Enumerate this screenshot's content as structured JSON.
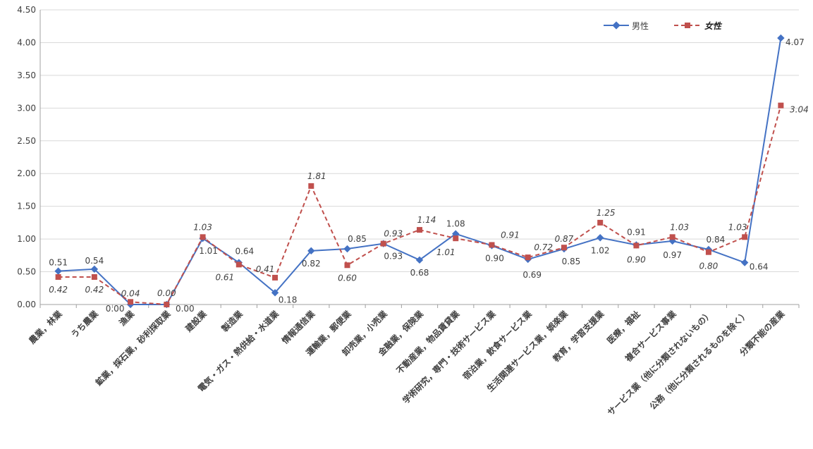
{
  "chart_data": {
    "type": "line",
    "title": "",
    "xlabel": "",
    "ylabel": "",
    "ylim": [
      0,
      4.5
    ],
    "yticks": [
      "0.00",
      "0.50",
      "1.00",
      "1.50",
      "2.00",
      "2.50",
      "3.00",
      "3.50",
      "4.00",
      "4.50"
    ],
    "grid": true,
    "legend_position": "top-right",
    "categories": [
      "農業，林業",
      "うち農業",
      "漁業",
      "鉱業，採石業，砂利採取業",
      "建設業",
      "製造業",
      "電気・ガス・熱供給・水道業",
      "情報通信業",
      "運輸業，郵便業",
      "卸売業，小売業",
      "金融業，保険業",
      "不動産業，物品賃貸業",
      "学術研究，専門・技術サービス業",
      "宿泊業，飲食サービス業",
      "生活関連サービス業，娯楽業",
      "教育，学習支援業",
      "医療，福祉",
      "複合サービス事業",
      "サービス業（他に分類されないもの）",
      "公務（他に分類されるものを除く）",
      "分類不能の産業"
    ],
    "series": [
      {
        "name": "男性",
        "color": "#4472c4",
        "marker": "diamond",
        "dash": "solid",
        "values": [
          0.51,
          0.54,
          0.0,
          0.0,
          1.01,
          0.64,
          0.18,
          0.82,
          0.85,
          0.93,
          0.68,
          1.08,
          0.9,
          0.69,
          0.85,
          1.02,
          0.91,
          0.97,
          0.84,
          0.64,
          4.07
        ],
        "labels": [
          "0.51",
          "0.54",
          "0.00",
          "0.00",
          "1.01",
          "0.64",
          "0.18",
          "0.82",
          "0.85",
          "0.93",
          "0.68",
          "1.08",
          "0.90",
          "0.69",
          "0.85",
          "1.02",
          "0.91",
          "0.97",
          "0.84",
          "0.64",
          "4.07"
        ]
      },
      {
        "name": "女性",
        "color": "#c0504d",
        "marker": "square",
        "dash": "dashed",
        "values": [
          0.42,
          0.42,
          0.04,
          0.0,
          1.03,
          0.61,
          0.41,
          1.81,
          0.6,
          0.93,
          1.14,
          1.01,
          0.91,
          0.72,
          0.87,
          1.25,
          0.9,
          1.03,
          0.8,
          1.03,
          3.04
        ],
        "labels": [
          "0.42",
          "0.42",
          "0.04",
          "0.00",
          "1.03",
          "0.61",
          "0.41",
          "1.81",
          "0.60",
          "0.93",
          "1.14",
          "1.01",
          "0.91",
          "0.72",
          "0.87",
          "1.25",
          "0.90",
          "1.03",
          "0.80",
          "1.03",
          "3.04"
        ]
      }
    ]
  }
}
